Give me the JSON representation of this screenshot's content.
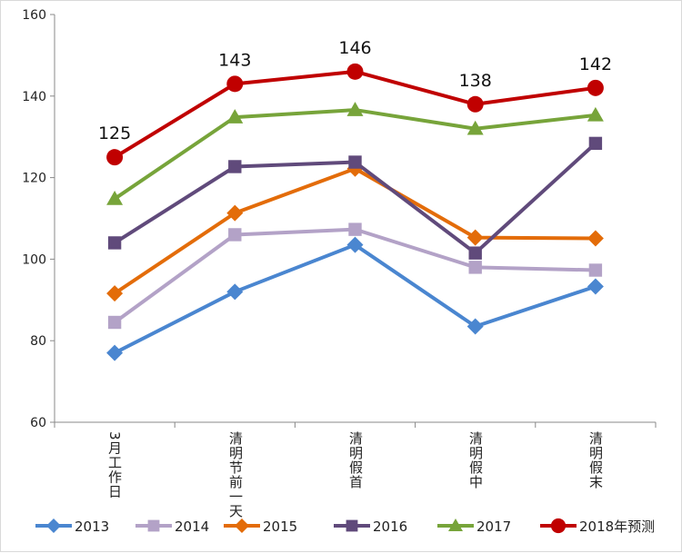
{
  "chart_data": {
    "type": "line",
    "title": "",
    "xlabel": "",
    "ylabel": "",
    "ylim": [
      60,
      160
    ],
    "yticks": [
      60,
      80,
      100,
      120,
      140,
      160
    ],
    "categories": [
      "3月工作日",
      "清明节前一天",
      "清明假首",
      "清明假中",
      "清明假末"
    ],
    "legend_position": "bottom",
    "series": [
      {
        "name": "2013",
        "color": "#4a86d0",
        "marker": "diamond",
        "values": [
          77,
          92,
          103.5,
          83.5,
          93.3
        ]
      },
      {
        "name": "2014",
        "color": "#b3a2c7",
        "marker": "square",
        "values": [
          84.5,
          106,
          107.3,
          98,
          97.3
        ]
      },
      {
        "name": "2015",
        "color": "#e36c09",
        "marker": "diamond",
        "values": [
          91.6,
          111.3,
          122.2,
          105.3,
          105.1
        ]
      },
      {
        "name": "2016",
        "color": "#604a7b",
        "marker": "square",
        "values": [
          104,
          122.7,
          123.8,
          101.5,
          128.4
        ]
      },
      {
        "name": "2017",
        "color": "#77a43a",
        "marker": "triangle",
        "values": [
          114.8,
          134.8,
          136.6,
          132,
          135.3
        ]
      },
      {
        "name": "2018年预测",
        "color": "#c00000",
        "marker": "circle",
        "values": [
          125,
          143,
          146,
          138,
          142
        ],
        "labels": [
          "125",
          "143",
          "146",
          "138",
          "142"
        ]
      }
    ]
  }
}
